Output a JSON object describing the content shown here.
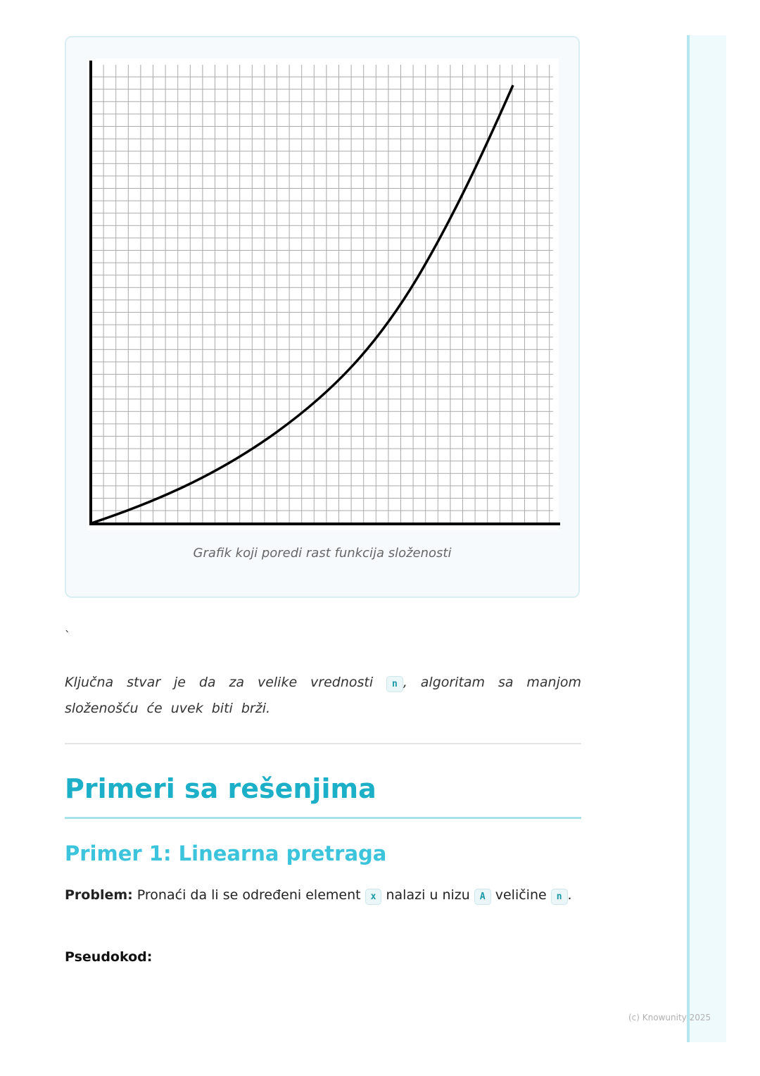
{
  "figure": {
    "caption": "Grafik koji poredi rast funkcija složenosti",
    "image_description_icon": "growth-curve-graph"
  },
  "stray_mark": "`",
  "paragraph": {
    "part1": "Ključna stvar je da za velike vrednosti ",
    "code": "n",
    "part2": ", algoritam sa manjom složenošću će uvek biti brži."
  },
  "section": {
    "title": "Primeri sa rešenjima",
    "subtitle": "Primer 1: Linearna pretraga",
    "problem_label": "Problem:",
    "problem_text1": " Pronaći da li se određeni element ",
    "code_x": "x",
    "problem_text2": " nalazi u nizu ",
    "code_a": "A",
    "problem_text3": " veličine ",
    "code_n": "n",
    "problem_text4": ".",
    "pseudocode_label": "Pseudokod:"
  },
  "footer": "(c) Knowunity 2025",
  "colors": {
    "accent": "#1cb0c8",
    "accent_light": "#3bc4db",
    "sidebar": "#eefafc"
  }
}
